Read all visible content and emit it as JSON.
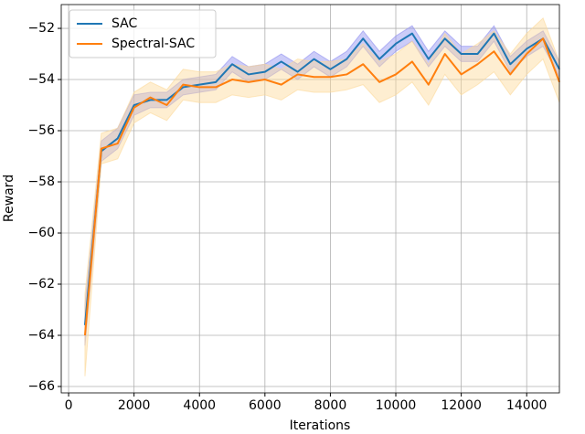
{
  "chart_data": {
    "type": "line",
    "x_label": "Iterations",
    "y_label": "Reward",
    "x": [
      500,
      1000,
      1500,
      2000,
      2500,
      3000,
      3500,
      4000,
      4500,
      5000,
      5500,
      6000,
      6500,
      7000,
      7500,
      8000,
      8500,
      9000,
      9500,
      10000,
      10500,
      11000,
      11500,
      12000,
      12500,
      13000,
      13500,
      14000,
      14500,
      15000
    ],
    "series": [
      {
        "name": "SAC",
        "color": "#1f77b4",
        "band_color": "#8f8ff0",
        "values": [
          -63.6,
          -56.8,
          -56.3,
          -55.0,
          -54.8,
          -54.8,
          -54.3,
          -54.2,
          -54.1,
          -53.4,
          -53.8,
          -53.7,
          -53.3,
          -53.7,
          -53.2,
          -53.6,
          -53.2,
          -52.4,
          -53.2,
          -52.6,
          -52.2,
          -53.2,
          -52.4,
          -53.0,
          -53.0,
          -52.2,
          -53.4,
          -52.8,
          -52.4,
          -53.6
        ],
        "lower": [
          -64.4,
          -57.2,
          -56.7,
          -55.4,
          -55.1,
          -55.1,
          -54.6,
          -54.5,
          -54.4,
          -53.7,
          -54.1,
          -54.0,
          -53.6,
          -54.0,
          -53.5,
          -53.9,
          -53.5,
          -52.7,
          -53.5,
          -52.9,
          -52.5,
          -53.5,
          -52.7,
          -53.3,
          -53.3,
          -52.5,
          -53.7,
          -53.1,
          -52.7,
          -53.9
        ],
        "upper": [
          -62.8,
          -56.4,
          -55.9,
          -54.6,
          -54.5,
          -54.5,
          -54.0,
          -53.9,
          -53.8,
          -53.1,
          -53.5,
          -53.4,
          -53.0,
          -53.4,
          -52.9,
          -53.3,
          -52.9,
          -52.1,
          -52.9,
          -52.3,
          -51.9,
          -52.9,
          -52.1,
          -52.7,
          -52.7,
          -51.9,
          -53.1,
          -52.5,
          -52.1,
          -53.3
        ]
      },
      {
        "name": "Spectral-SAC",
        "color": "#ff7f0e",
        "band_color": "#fcd99a",
        "values": [
          -64.0,
          -56.7,
          -56.5,
          -55.1,
          -54.7,
          -55.0,
          -54.2,
          -54.3,
          -54.3,
          -54.0,
          -54.1,
          -54.0,
          -54.2,
          -53.8,
          -53.9,
          -53.9,
          -53.8,
          -53.4,
          -54.1,
          -53.8,
          -53.3,
          -54.2,
          -53.0,
          -53.8,
          -53.4,
          -52.9,
          -53.8,
          -53.0,
          -52.4,
          -54.1
        ],
        "lower": [
          -65.6,
          -57.3,
          -57.1,
          -55.7,
          -55.3,
          -55.6,
          -54.8,
          -54.9,
          -54.9,
          -54.6,
          -54.7,
          -54.6,
          -54.8,
          -54.4,
          -54.5,
          -54.5,
          -54.4,
          -54.2,
          -54.9,
          -54.6,
          -54.1,
          -55.0,
          -53.8,
          -54.6,
          -54.2,
          -53.7,
          -54.6,
          -53.8,
          -53.2,
          -54.9
        ],
        "upper": [
          -62.4,
          -56.1,
          -55.9,
          -54.5,
          -54.1,
          -54.4,
          -53.6,
          -53.7,
          -53.7,
          -53.4,
          -53.5,
          -53.4,
          -53.6,
          -53.2,
          -53.3,
          -53.3,
          -53.2,
          -52.6,
          -53.3,
          -53.0,
          -52.5,
          -53.4,
          -52.2,
          -53.0,
          -52.6,
          -52.1,
          -53.0,
          -52.2,
          -51.6,
          -53.3
        ]
      }
    ],
    "xlim": [
      -225,
      15000
    ],
    "ylim": [
      -66.25,
      -51.07
    ],
    "xticks": [
      0,
      2000,
      4000,
      6000,
      8000,
      10000,
      12000,
      14000
    ],
    "yticks": [
      {
        "value": -66,
        "label": "−66"
      },
      {
        "value": -64,
        "label": "−64"
      },
      {
        "value": -62,
        "label": "−62"
      },
      {
        "value": -60,
        "label": "−60"
      },
      {
        "value": -58,
        "label": "−58"
      },
      {
        "value": -56,
        "label": "−56"
      },
      {
        "value": -54,
        "label": "−54"
      },
      {
        "value": -52,
        "label": "−52"
      }
    ],
    "grid": true,
    "legend": "upper-left"
  }
}
